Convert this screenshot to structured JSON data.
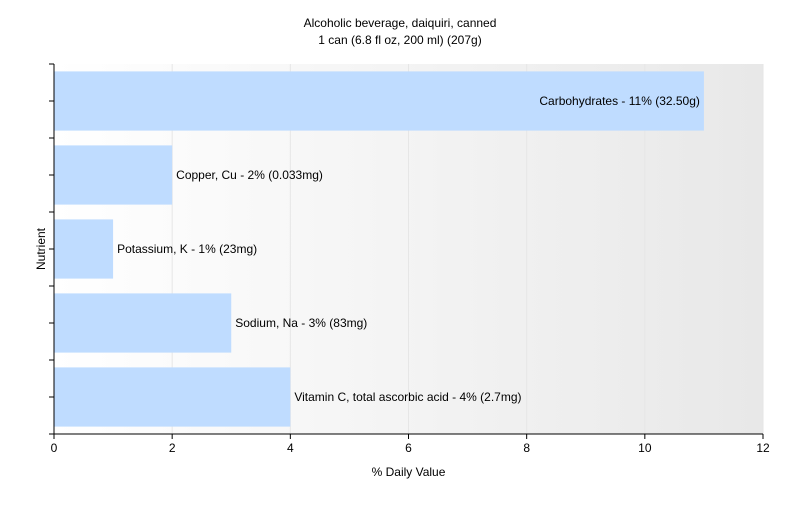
{
  "chart_data": {
    "type": "bar",
    "orientation": "horizontal",
    "title": "Alcoholic beverage, daiquiri, canned",
    "subtitle": "1 can (6.8 fl oz, 200 ml) (207g)",
    "xlabel": "% Daily Value",
    "ylabel": "Nutrient",
    "xlim": [
      0,
      12
    ],
    "xticks": [
      0,
      2,
      4,
      6,
      8,
      10,
      12
    ],
    "grid": true,
    "legend": "none",
    "bar_color": "#bfdcff",
    "categories": [
      "Carbohydrates",
      "Copper, Cu",
      "Potassium, K",
      "Sodium, Na",
      "Vitamin C, total ascorbic acid"
    ],
    "values": [
      11,
      2,
      1,
      3,
      4
    ],
    "data_labels": [
      "Carbohydrates - 11% (32.50g)",
      "Copper, Cu - 2% (0.033mg)",
      "Potassium, K - 1% (23mg)",
      "Sodium, Na - 3% (83mg)",
      "Vitamin C, total ascorbic acid - 4% (2.7mg)"
    ]
  }
}
